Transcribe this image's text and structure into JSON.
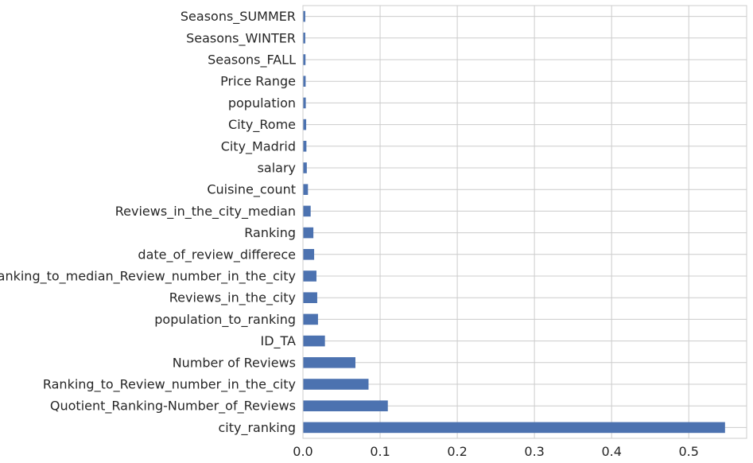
{
  "chart_data": {
    "type": "bar",
    "orientation": "horizontal",
    "title": "",
    "xlabel": "",
    "ylabel": "",
    "xlim": [
      0,
      0.575
    ],
    "xticks": [
      "0.0",
      "0.1",
      "0.2",
      "0.3",
      "0.4",
      "0.5"
    ],
    "xtick_values": [
      0,
      0.1,
      0.2,
      0.3,
      0.4,
      0.5
    ],
    "grid": true,
    "bar_color": "#4c72b0",
    "categories": [
      "Seasons_SUMMER",
      "Seasons_WINTER",
      "Seasons_FALL",
      "Price Range",
      "population",
      "City_Rome",
      "City_Madrid",
      "salary",
      "Cuisine_count",
      "Reviews_in_the_city_median",
      "Ranking",
      "date_of_review_differece",
      "Ranking_to_median_Review_number_in_the_city",
      "Reviews_in_the_city",
      "population_to_ranking",
      "ID_TA",
      "Number of Reviews",
      "Ranking_to_Review_number_in_the_city",
      "Quotient_Ranking-Number_of_Reviews",
      "city_ranking"
    ],
    "values": [
      0.003,
      0.003,
      0.0033,
      0.0035,
      0.0037,
      0.0042,
      0.0045,
      0.005,
      0.0065,
      0.01,
      0.0135,
      0.0145,
      0.0175,
      0.0185,
      0.0195,
      0.0285,
      0.068,
      0.085,
      0.11,
      0.547
    ]
  }
}
